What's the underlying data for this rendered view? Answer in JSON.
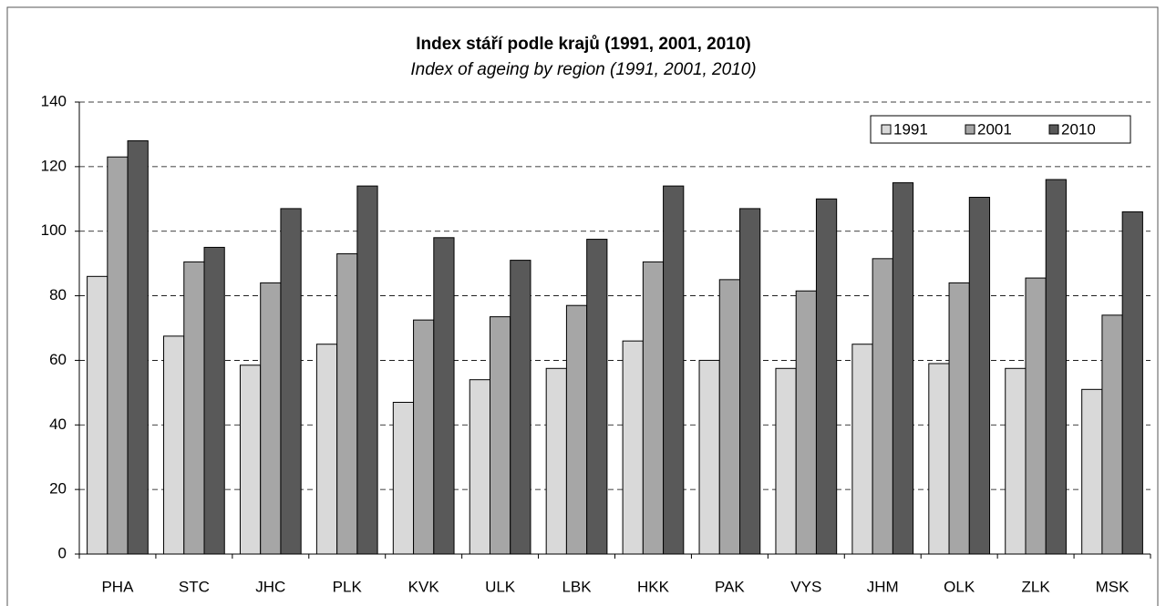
{
  "chart_data": {
    "type": "bar",
    "title": "Index stáří podle krajů (1991,  2001,  2010)",
    "subtitle": "Index of ageing  by region (1991,  2001,  2010)",
    "categories": [
      "PHA",
      "STC",
      "JHC",
      "PLK",
      "KVK",
      "ULK",
      "LBK",
      "HKK",
      "PAK",
      "VYS",
      "JHM",
      "OLK",
      "ZLK",
      "MSK"
    ],
    "series": [
      {
        "name": "1991",
        "color": "#d9d9d9",
        "values": [
          86,
          67.5,
          58.5,
          65,
          47,
          54,
          57.5,
          66,
          60,
          57.5,
          65,
          59,
          57.5,
          51
        ]
      },
      {
        "name": "2001",
        "color": "#a6a6a6",
        "values": [
          123,
          90.5,
          84,
          93,
          72.5,
          73.5,
          77,
          90.5,
          85,
          81.5,
          91.5,
          84,
          85.5,
          74
        ]
      },
      {
        "name": "2010",
        "color": "#595959",
        "values": [
          128,
          95,
          107,
          114,
          98,
          91,
          97.5,
          114,
          107,
          110,
          115,
          110.5,
          116,
          106
        ]
      }
    ],
    "ylim": [
      0,
      140
    ],
    "yticks": [
      0,
      20,
      40,
      60,
      80,
      100,
      120,
      140
    ],
    "grid": true,
    "legend": "upper right"
  }
}
